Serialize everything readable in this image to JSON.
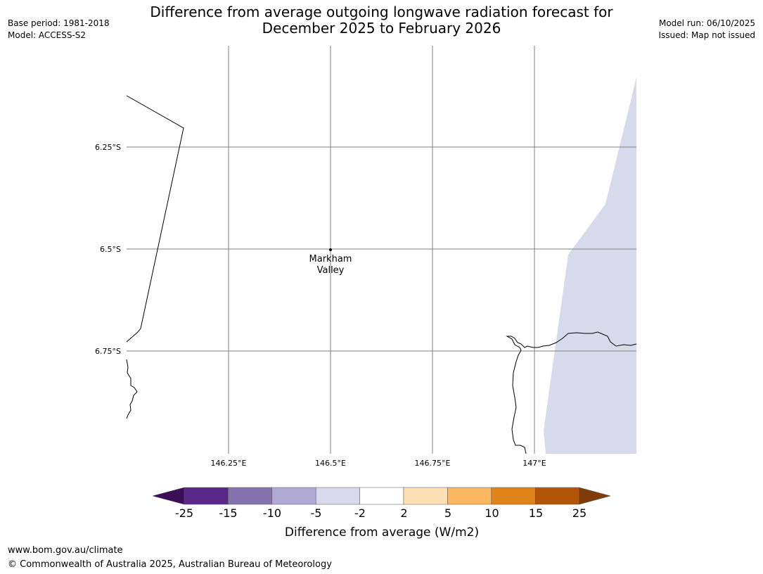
{
  "header": {
    "title_line1": "Difference from average outgoing longwave radiation forecast for",
    "title_line2": "December 2025 to February 2026",
    "base_period": "Base period: 1981-2018",
    "model": "Model: ACCESS-S2",
    "model_run": "Model run: 06/10/2025",
    "issued": "Issued: Map not issued"
  },
  "map": {
    "lat_labels": [
      "6.25°S",
      "6.5°S",
      "6.75°S"
    ],
    "lon_labels": [
      "146.25°E",
      "146.5°E",
      "146.75°E",
      "147°E"
    ],
    "place": {
      "name_line1": "Markham",
      "name_line2": "Valley",
      "lon": 146.5,
      "lat": -6.5
    },
    "colors": {
      "coast": "#000000",
      "grid": "#808080",
      "shaded_region": "#d8d9ea"
    },
    "shaded_category": "-5 to -2"
  },
  "colorbar": {
    "ticks": [
      "-25",
      "-15",
      "-10",
      "-5",
      "-2",
      "2",
      "5",
      "10",
      "15",
      "25"
    ],
    "colors": [
      "#3b0f58",
      "#5a2889",
      "#8573b0",
      "#b0a9d3",
      "#d8d9ea",
      "#ffffff",
      "#fde0b3",
      "#fbb661",
      "#e0821a",
      "#b15608",
      "#7f3b08"
    ],
    "label": "Difference from average (W/m2)"
  },
  "footer": {
    "url": "www.bom.gov.au/climate",
    "copyright": "© Commonwealth of Australia 2025, Australian Bureau of Meteorology"
  }
}
